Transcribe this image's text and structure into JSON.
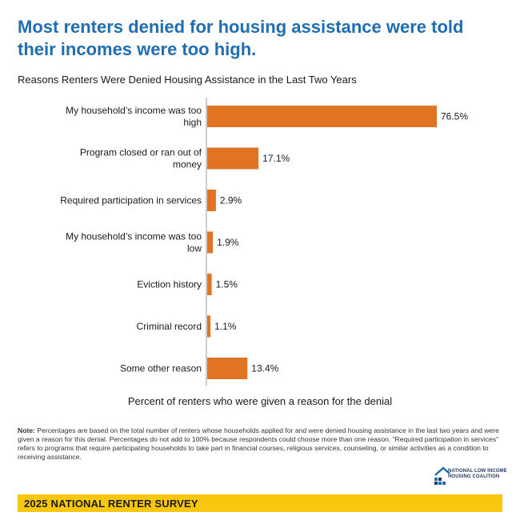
{
  "headline": "Most renters denied for housing assistance were told their incomes were too high.",
  "subtitle": "Reasons Renters Were Denied Housing Assistance in the Last Two Years",
  "chart_data": {
    "type": "bar",
    "orientation": "horizontal",
    "categories": [
      "My household’s income was too high",
      "Program closed or ran out of money",
      "Required participation in services",
      "My household’s income was too low",
      "Eviction history",
      "Criminal record",
      "Some other reason"
    ],
    "category_lines": [
      [
        "My household’s income was too",
        "high"
      ],
      [
        "Program closed or ran out of",
        "money"
      ],
      [
        "Required participation in services"
      ],
      [
        "My household’s income was too",
        "low"
      ],
      [
        "Eviction history"
      ],
      [
        "Criminal record"
      ],
      [
        "Some other reason"
      ]
    ],
    "values": [
      76.5,
      17.1,
      2.9,
      1.9,
      1.5,
      1.1,
      13.4
    ],
    "value_labels": [
      "76.5%",
      "17.1%",
      "2.9%",
      "1.9%",
      "1.5%",
      "1.1%",
      "13.4%"
    ],
    "xlabel": "Percent of renters who were given a reason for the denial",
    "xlim": [
      0,
      76.5
    ],
    "bar_color": "#e07422",
    "grid": false,
    "legend": "none"
  },
  "note": {
    "label": "Note:",
    "text": " Percentages are based on the total number of renters whose households applied for and were denied housing assistance in the last two years and were given a reason for this denial. Percentages do not add to 100% because respondents could choose more than one reason. “Required participation in services” refers to programs that require participating households to take part in financial courses, religious services, counseling, or similar activities as a condition to receiving assistance."
  },
  "logo": {
    "icon": "house-roof-logo-icon",
    "lines": [
      "NATIONAL LOW INCOME",
      "HOUSING COALITION"
    ]
  },
  "footer": {
    "text": "2025 NATIONAL RENTER SURVEY",
    "color": "#f9c80e"
  },
  "colors": {
    "headline": "#1f6db2",
    "bars": "#e07422"
  }
}
